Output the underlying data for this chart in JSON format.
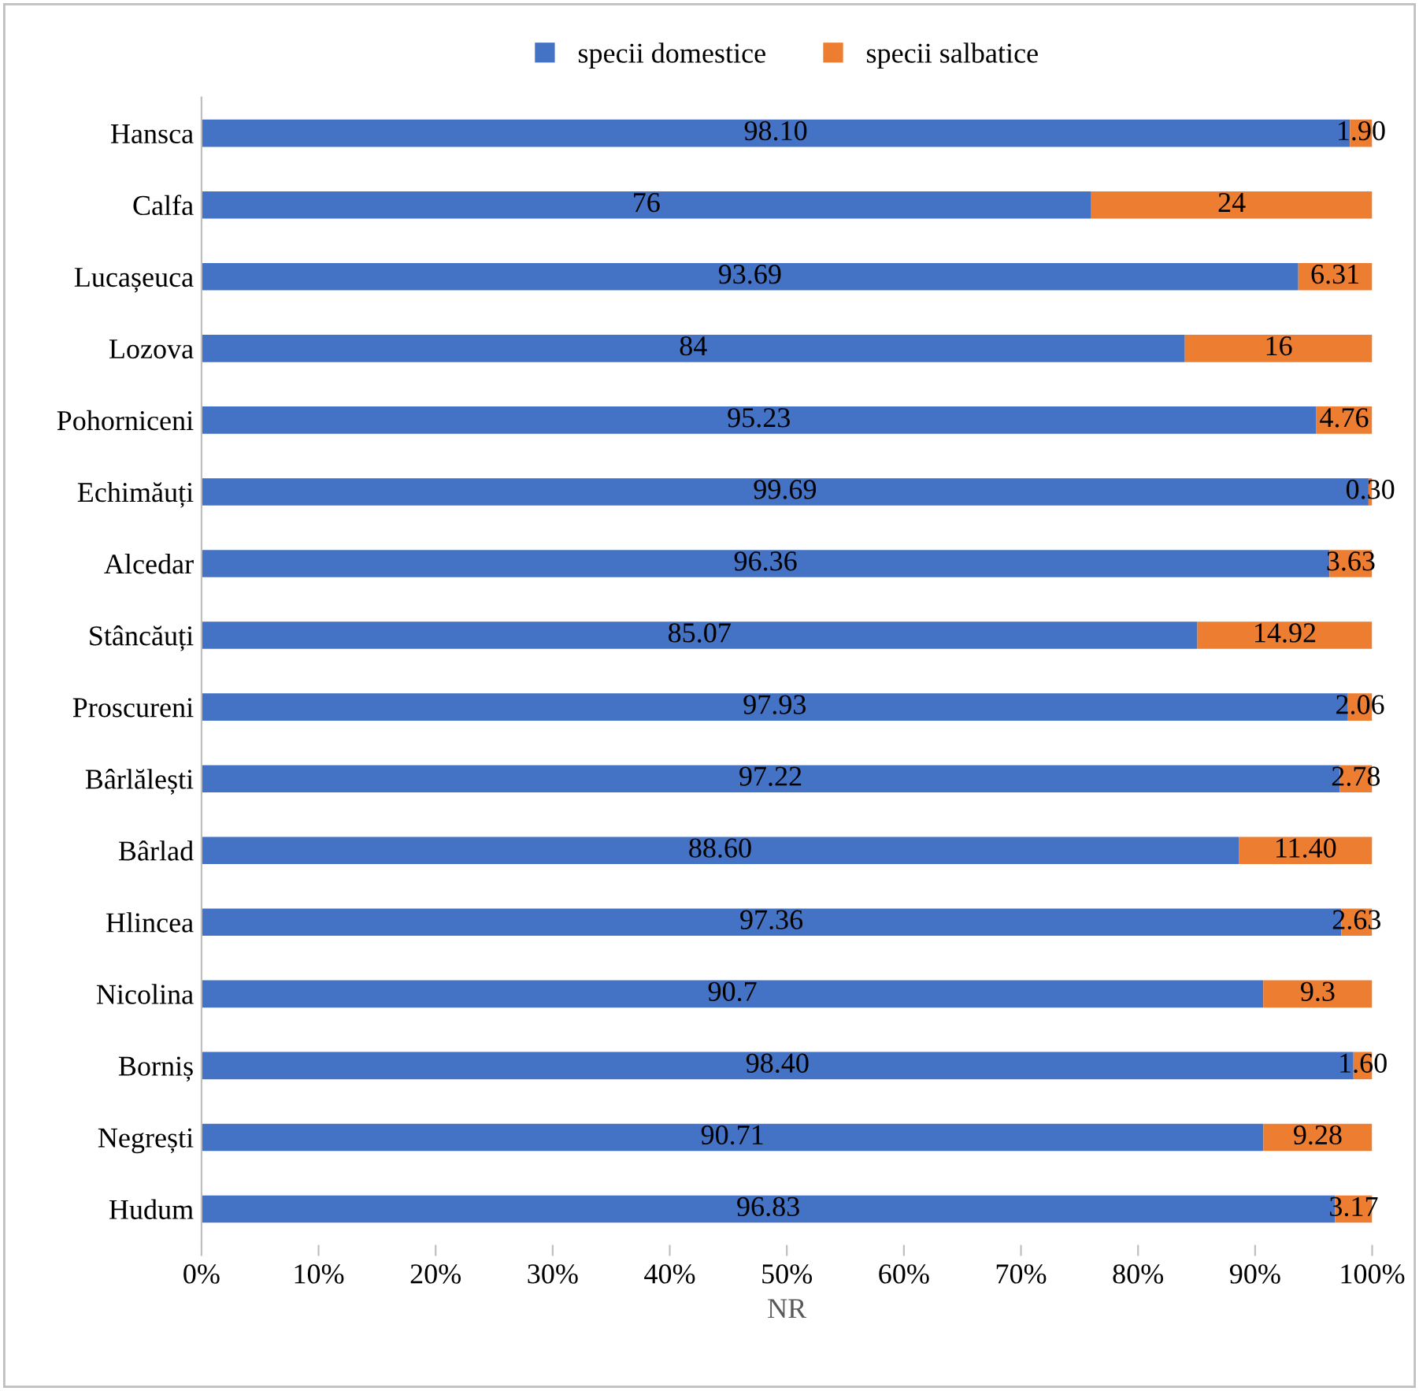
{
  "chart_data": {
    "type": "bar",
    "orientation": "horizontal",
    "stacked": true,
    "xlabel": "NR",
    "categories": [
      "Hansca",
      "Calfa",
      "Lucașeuca",
      "Lozova",
      "Pohorniceni",
      "Echimăuți",
      "Alcedar",
      "Stâncăuți",
      "Proscureni",
      "Bârlălești",
      "Bârlad",
      "Hlincea",
      "Nicolina",
      "Borniș",
      "Negrești",
      "Hudum"
    ],
    "series": [
      {
        "name": "specii domestice",
        "color": "#4472c4",
        "values": [
          98.1,
          76,
          93.69,
          84,
          95.23,
          99.69,
          96.36,
          85.07,
          97.93,
          97.22,
          88.6,
          97.36,
          90.7,
          98.4,
          90.71,
          96.83
        ],
        "value_labels": [
          "98.10",
          "76",
          "93.69",
          "84",
          "95.23",
          "99.69",
          "96.36",
          "85.07",
          "97.93",
          "97.22",
          "88.60",
          "97.36",
          "90.7",
          "98.40",
          "90.71",
          "96.83"
        ]
      },
      {
        "name": "specii salbatice",
        "color": "#ed7d31",
        "values": [
          1.9,
          24,
          6.31,
          16,
          4.76,
          0.3,
          3.63,
          14.92,
          2.06,
          2.78,
          11.4,
          2.63,
          9.3,
          1.6,
          9.28,
          3.17
        ],
        "value_labels": [
          "1.90",
          "24",
          "6.31",
          "16",
          "4.76",
          "0.30",
          "3.63",
          "14.92",
          "2.06",
          "2.78",
          "11.40",
          "2.63",
          "9.3",
          "1.60",
          "9.28",
          "3.17"
        ]
      }
    ],
    "xlim": [
      0,
      100
    ],
    "xticks": [
      {
        "value": 0,
        "label": "0%"
      },
      {
        "value": 10,
        "label": "10%"
      },
      {
        "value": 20,
        "label": "20%"
      },
      {
        "value": 30,
        "label": "30%"
      },
      {
        "value": 40,
        "label": "40%"
      },
      {
        "value": 50,
        "label": "50%"
      },
      {
        "value": 60,
        "label": "60%"
      },
      {
        "value": 70,
        "label": "70%"
      },
      {
        "value": 80,
        "label": "80%"
      },
      {
        "value": 90,
        "label": "90%"
      },
      {
        "value": 100,
        "label": "100%"
      }
    ],
    "legend": "top",
    "grid": false
  }
}
